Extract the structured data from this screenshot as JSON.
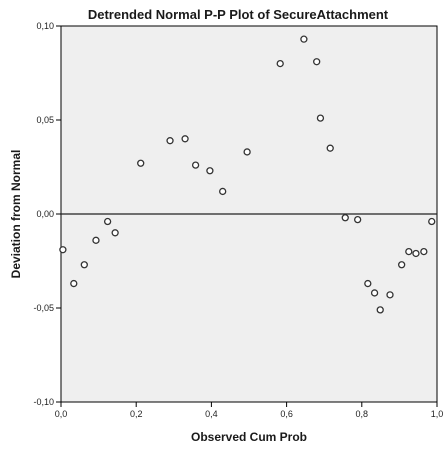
{
  "colors": {
    "plot_background": "#efefef",
    "marker_fill": "#ffffff",
    "marker_stroke": "#333333",
    "reference_line": "#222222",
    "frame": "#000000"
  },
  "chart_data": {
    "type": "scatter",
    "title": "Detrended Normal P-P Plot of SecureAttachment",
    "xlabel": "Observed Cum Prob",
    "ylabel": "Deviation from Normal",
    "xlim": [
      0.0,
      1.0
    ],
    "ylim": [
      -0.1,
      0.1
    ],
    "grid": false,
    "x_ticks": [
      0.0,
      0.2,
      0.4,
      0.6,
      0.8,
      1.0
    ],
    "x_tick_labels": [
      "0,0",
      "0,2",
      "0,4",
      "0,6",
      "0,8",
      "1,0"
    ],
    "y_ticks": [
      -0.1,
      -0.05,
      0.0,
      0.05,
      0.1
    ],
    "y_tick_labels": [
      "-0,10",
      "-0,05",
      "0,00",
      "0,05",
      "0,10"
    ],
    "reference_line_y": 0.0,
    "points": [
      {
        "x": 0.005,
        "y": -0.019
      },
      {
        "x": 0.034,
        "y": -0.037
      },
      {
        "x": 0.062,
        "y": -0.027
      },
      {
        "x": 0.093,
        "y": -0.014
      },
      {
        "x": 0.124,
        "y": -0.004
      },
      {
        "x": 0.144,
        "y": -0.01
      },
      {
        "x": 0.212,
        "y": 0.027
      },
      {
        "x": 0.29,
        "y": 0.039
      },
      {
        "x": 0.33,
        "y": 0.04
      },
      {
        "x": 0.358,
        "y": 0.026
      },
      {
        "x": 0.396,
        "y": 0.023
      },
      {
        "x": 0.43,
        "y": 0.012
      },
      {
        "x": 0.495,
        "y": 0.033
      },
      {
        "x": 0.583,
        "y": 0.08
      },
      {
        "x": 0.646,
        "y": 0.093
      },
      {
        "x": 0.68,
        "y": 0.081
      },
      {
        "x": 0.69,
        "y": 0.051
      },
      {
        "x": 0.716,
        "y": 0.035
      },
      {
        "x": 0.756,
        "y": -0.002
      },
      {
        "x": 0.789,
        "y": -0.003
      },
      {
        "x": 0.816,
        "y": -0.037
      },
      {
        "x": 0.834,
        "y": -0.042
      },
      {
        "x": 0.849,
        "y": -0.051
      },
      {
        "x": 0.875,
        "y": -0.043
      },
      {
        "x": 0.906,
        "y": -0.027
      },
      {
        "x": 0.925,
        "y": -0.02
      },
      {
        "x": 0.944,
        "y": -0.021
      },
      {
        "x": 0.965,
        "y": -0.02
      },
      {
        "x": 0.986,
        "y": -0.004
      }
    ]
  }
}
